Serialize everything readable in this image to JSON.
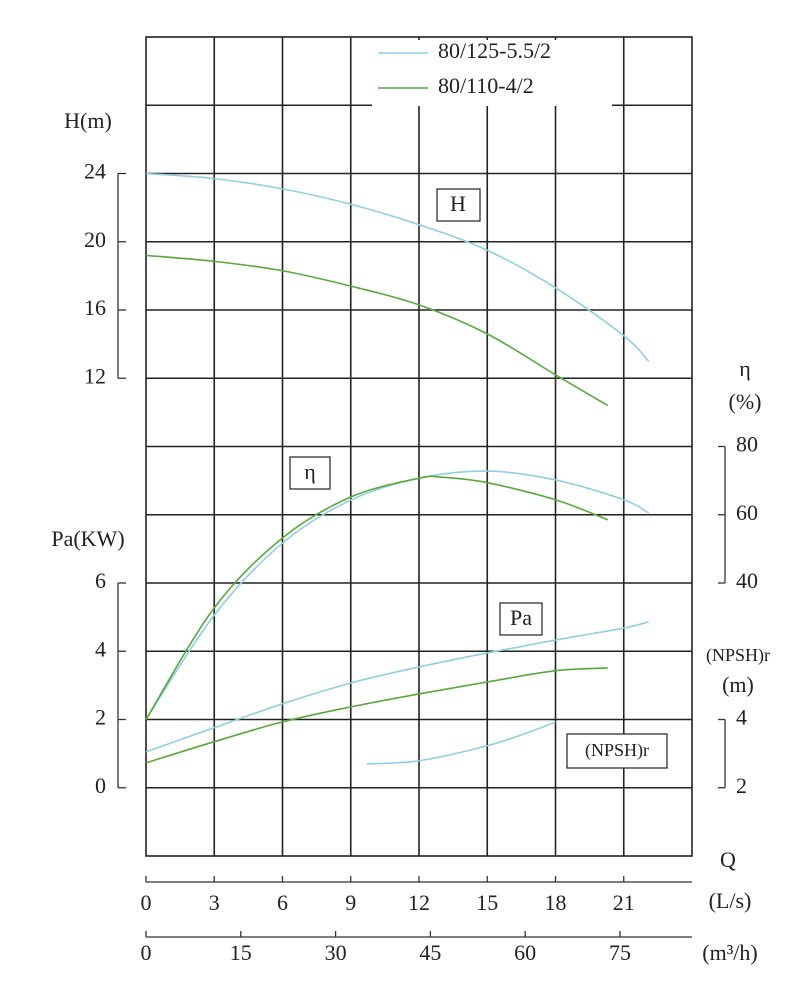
{
  "chart_data": {
    "type": "line",
    "series": [
      {
        "name": "80/125-5.5/2",
        "color": "#8fcfe0",
        "H": {
          "x": [
            0,
            3,
            6,
            9,
            12,
            15,
            18,
            21,
            22.1
          ],
          "values": [
            24,
            23.7,
            23.1,
            22.2,
            21.0,
            19.5,
            17.3,
            14.5,
            13.0
          ]
        },
        "eta": {
          "x": [
            0,
            3,
            6,
            9,
            12,
            15,
            18,
            21,
            22.1
          ],
          "values": [
            0,
            30.6,
            51.7,
            64.3,
            70.7,
            72.8,
            70.2,
            64.4,
            60.5
          ]
        },
        "Pa": {
          "x": [
            0,
            3,
            6,
            9,
            12,
            15,
            18,
            21,
            22.1
          ],
          "values": [
            1.05,
            1.76,
            2.46,
            3.07,
            3.54,
            3.95,
            4.33,
            4.68,
            4.86
          ]
        },
        "NPSHr": {
          "x": [
            9.7,
            12,
            15,
            17,
            18
          ],
          "values": [
            2.7,
            2.79,
            3.23,
            3.67,
            3.93
          ]
        }
      },
      {
        "name": "80/110-4/2",
        "color": "#5aa83c",
        "H": {
          "x": [
            0,
            3,
            6,
            9,
            12,
            15,
            18,
            20.3
          ],
          "values": [
            19.2,
            18.85,
            18.3,
            17.4,
            16.3,
            14.6,
            12.2,
            10.4
          ]
        },
        "eta": {
          "x": [
            0,
            3,
            6,
            9,
            12,
            13,
            15,
            18,
            20.3
          ],
          "values": [
            0,
            32.7,
            53.2,
            65.2,
            70.7,
            71,
            69.4,
            64.4,
            58.5
          ]
        },
        "Pa": {
          "x": [
            0,
            3,
            6,
            9,
            12,
            15,
            18,
            20.3
          ],
          "values": [
            0.73,
            1.35,
            1.93,
            2.37,
            2.75,
            3.1,
            3.43,
            3.51
          ]
        }
      }
    ],
    "y_axes": {
      "H": {
        "label": "H(m)",
        "lim": [
          12,
          24
        ],
        "ticks": [
          12,
          16,
          20,
          24
        ]
      },
      "eta": {
        "label": "η",
        "unit": "(%)",
        "lim": [
          40,
          80
        ],
        "ticks": [
          40,
          60,
          80
        ]
      },
      "Pa": {
        "label": "Pa(KW)",
        "lim": [
          0,
          6
        ],
        "ticks": [
          0,
          2,
          4,
          6
        ]
      },
      "NPSHr": {
        "label": "(NPSH)r",
        "unit": "(m)",
        "lim": [
          2,
          4
        ],
        "ticks": [
          2,
          4
        ]
      }
    },
    "x_label": "Q",
    "x_axes": [
      {
        "label": "(L/s)",
        "lim": [
          0,
          24
        ],
        "ticks": [
          0,
          3,
          6,
          9,
          12,
          15,
          18,
          21
        ]
      },
      {
        "label": "(m³/h)",
        "lim": [
          0,
          86.4
        ],
        "ticks": [
          0,
          15,
          30,
          45,
          60,
          75
        ]
      }
    ],
    "annotations": [
      "H",
      "η",
      "Pa",
      "(NPSH)r"
    ]
  }
}
